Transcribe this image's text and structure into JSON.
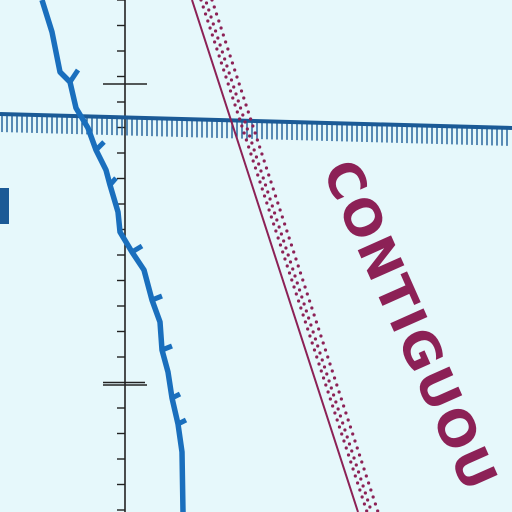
{
  "map": {
    "label_text": "CONTIGUOU",
    "colors": {
      "background": "#e6f8fb",
      "boundary_blue": "#1b5a96",
      "airway_blue": "#1a6fbd",
      "maroon": "#8c2156",
      "tick_black": "#222222"
    },
    "features": [
      "meridian-scale-line",
      "hatched-boundary-line",
      "jagged-blue-boundary",
      "restricted-zone-line",
      "restricted-zone-dots",
      "contiguous-zone-label"
    ]
  }
}
